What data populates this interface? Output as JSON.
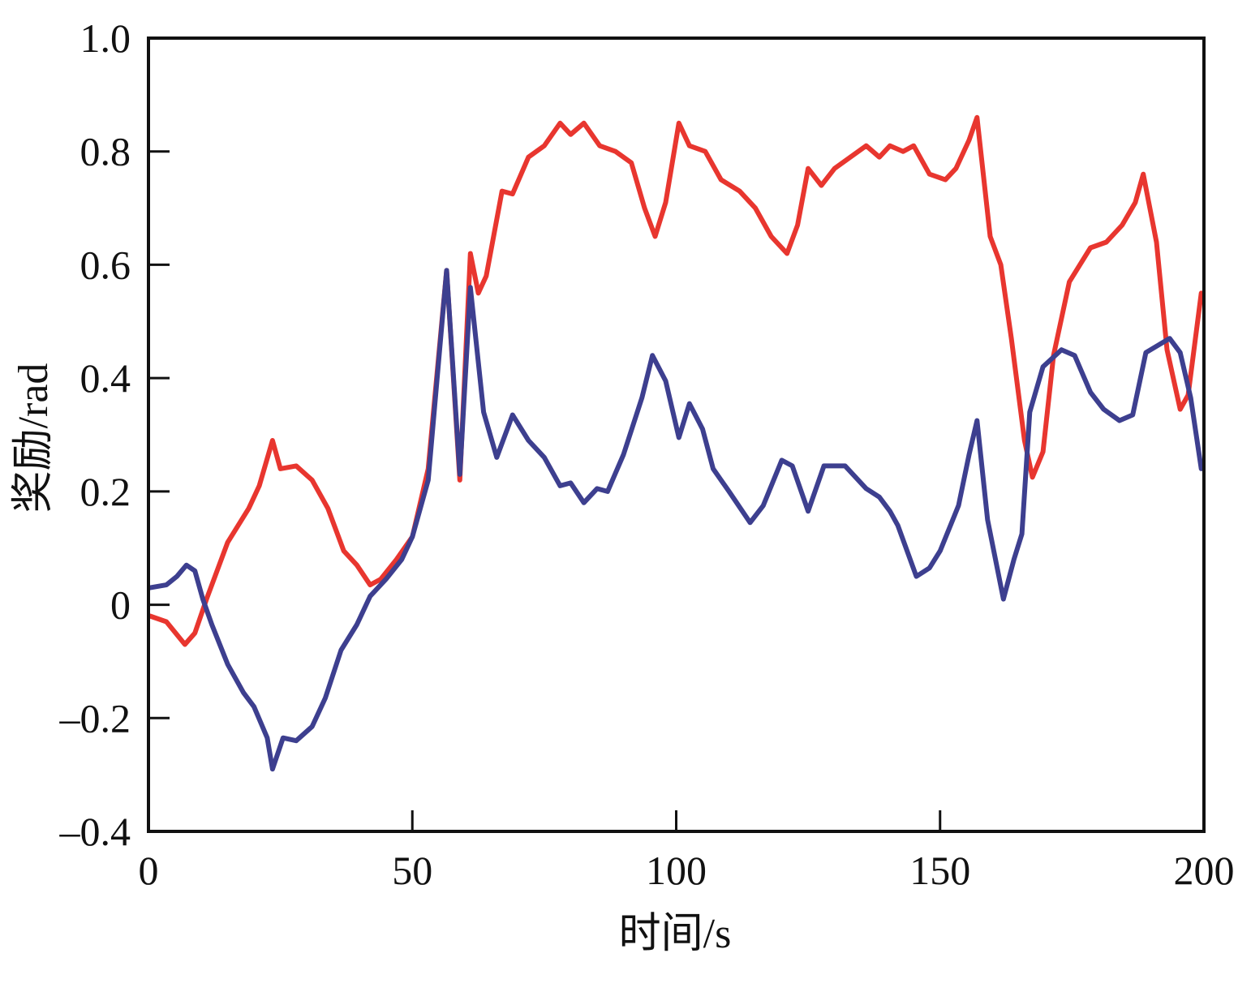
{
  "chart_data": {
    "type": "line",
    "title": "",
    "xlabel": "时间/s",
    "ylabel": "奖励/rad",
    "xlim": [
      0,
      200
    ],
    "ylim": [
      -0.4,
      1.0
    ],
    "xticks": [
      0,
      50,
      100,
      150,
      200
    ],
    "xtick_labels": [
      "0",
      "50",
      "100",
      "150",
      "200"
    ],
    "yticks": [
      -0.4,
      -0.2,
      0,
      0.2,
      0.4,
      0.6,
      0.8,
      1.0
    ],
    "ytick_labels": [
      "–0.4",
      "–0.2",
      "0",
      "0.2",
      "0.4",
      "0.6",
      "0.8",
      "1.0"
    ],
    "grid": false,
    "legend": "none",
    "series": [
      {
        "color": "#e8362f",
        "x": [
          0.3,
          3.4,
          6.9,
          8.8,
          11,
          15,
          19,
          21,
          23.5,
          25,
          28,
          31,
          34,
          37,
          39.5,
          42,
          44,
          47,
          50,
          53,
          56.5,
          59,
          61,
          62.5,
          64,
          67,
          69,
          72,
          75,
          78,
          80,
          82.5,
          85.5,
          88.5,
          91.5,
          94,
          96,
          98,
          100.5,
          102.5,
          105.5,
          108.5,
          112,
          115,
          118,
          121,
          123,
          125,
          127.5,
          130,
          133,
          136,
          138.5,
          140.5,
          143,
          145,
          148,
          151,
          153,
          155.5,
          157,
          159.5,
          161.5,
          163.5,
          166,
          167.5,
          169.5,
          171.5,
          174.5,
          178.5,
          181.5,
          184.5,
          187,
          188.5,
          191,
          193,
          195.5,
          197,
          199.5
        ],
        "y": [
          -0.02,
          -0.03,
          -0.07,
          -0.05,
          0.01,
          0.11,
          0.17,
          0.21,
          0.29,
          0.24,
          0.245,
          0.22,
          0.17,
          0.095,
          0.07,
          0.035,
          0.045,
          0.08,
          0.12,
          0.24,
          0.59,
          0.22,
          0.62,
          0.55,
          0.58,
          0.73,
          0.725,
          0.79,
          0.81,
          0.85,
          0.83,
          0.85,
          0.81,
          0.8,
          0.78,
          0.7,
          0.65,
          0.71,
          0.85,
          0.81,
          0.8,
          0.75,
          0.73,
          0.7,
          0.65,
          0.62,
          0.67,
          0.77,
          0.74,
          0.77,
          0.79,
          0.81,
          0.79,
          0.81,
          0.8,
          0.81,
          0.76,
          0.75,
          0.77,
          0.82,
          0.86,
          0.65,
          0.6,
          0.47,
          0.29,
          0.225,
          0.27,
          0.44,
          0.57,
          0.63,
          0.64,
          0.67,
          0.71,
          0.76,
          0.64,
          0.45,
          0.345,
          0.37,
          0.55
        ]
      },
      {
        "color": "#3d3f8f",
        "x": [
          0.3,
          3.4,
          5.4,
          7.2,
          8.8,
          10.3,
          12,
          15,
          18,
          20,
          22.5,
          23.5,
          25.5,
          28,
          31,
          33.5,
          36.5,
          39.5,
          42,
          45,
          48,
          50,
          53,
          56.5,
          59,
          61,
          63.5,
          66,
          69,
          72,
          75,
          78,
          80,
          82.5,
          85,
          87,
          90,
          93.5,
          95.5,
          98,
          100.5,
          102.5,
          105,
          107,
          110,
          114,
          116.5,
          120,
          122,
          125,
          128,
          132,
          136,
          138.5,
          140.5,
          142,
          145.5,
          148,
          150,
          153.5,
          155.5,
          157,
          159,
          162,
          164,
          165.5,
          167,
          169.5,
          173,
          175.5,
          178.5,
          181,
          184,
          186.5,
          189,
          193.5,
          195.5,
          197.5,
          199.5
        ],
        "y": [
          0.03,
          0.035,
          0.05,
          0.07,
          0.06,
          0.01,
          -0.035,
          -0.105,
          -0.155,
          -0.18,
          -0.235,
          -0.29,
          -0.235,
          -0.24,
          -0.215,
          -0.165,
          -0.08,
          -0.035,
          0.015,
          0.045,
          0.08,
          0.12,
          0.22,
          0.59,
          0.23,
          0.56,
          0.34,
          0.26,
          0.335,
          0.29,
          0.26,
          0.21,
          0.215,
          0.18,
          0.205,
          0.2,
          0.265,
          0.365,
          0.44,
          0.395,
          0.295,
          0.355,
          0.31,
          0.24,
          0.2,
          0.145,
          0.175,
          0.255,
          0.245,
          0.165,
          0.245,
          0.245,
          0.205,
          0.19,
          0.165,
          0.14,
          0.05,
          0.065,
          0.095,
          0.175,
          0.265,
          0.325,
          0.15,
          0.01,
          0.08,
          0.125,
          0.34,
          0.42,
          0.45,
          0.44,
          0.375,
          0.345,
          0.325,
          0.335,
          0.445,
          0.47,
          0.445,
          0.365,
          0.24
        ]
      }
    ]
  }
}
